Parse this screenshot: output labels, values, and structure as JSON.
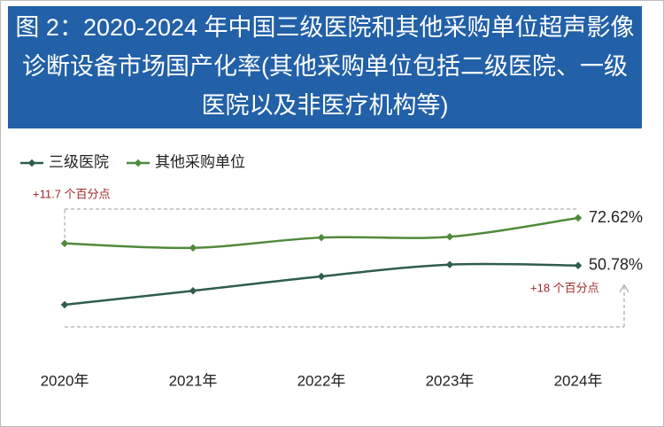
{
  "chart_data": {
    "type": "line",
    "title": "图 2：2020-2024 年中国三级医院和其他采购单位超声影像诊断设备市场国产化率(其他采购单位包括二级医院、一级医院以及非医疗机构等)",
    "categories": [
      "2020年",
      "2021年",
      "2022年",
      "2023年",
      "2024年"
    ],
    "series": [
      {
        "name": "三级医院",
        "color": "#2f5d4c",
        "values": [
          32.78,
          39.2,
          45.8,
          51.2,
          50.78
        ],
        "value_labels": [
          null,
          null,
          null,
          null,
          "50.78%"
        ]
      },
      {
        "name": "其他采购单位",
        "color": "#4f8a3a",
        "values": [
          60.92,
          58.9,
          63.6,
          64.0,
          72.62
        ],
        "value_labels": [
          null,
          null,
          null,
          null,
          "72.62%"
        ]
      }
    ],
    "annotations": [
      "+11.7 个百分点",
      "+18 个百分点"
    ]
  }
}
